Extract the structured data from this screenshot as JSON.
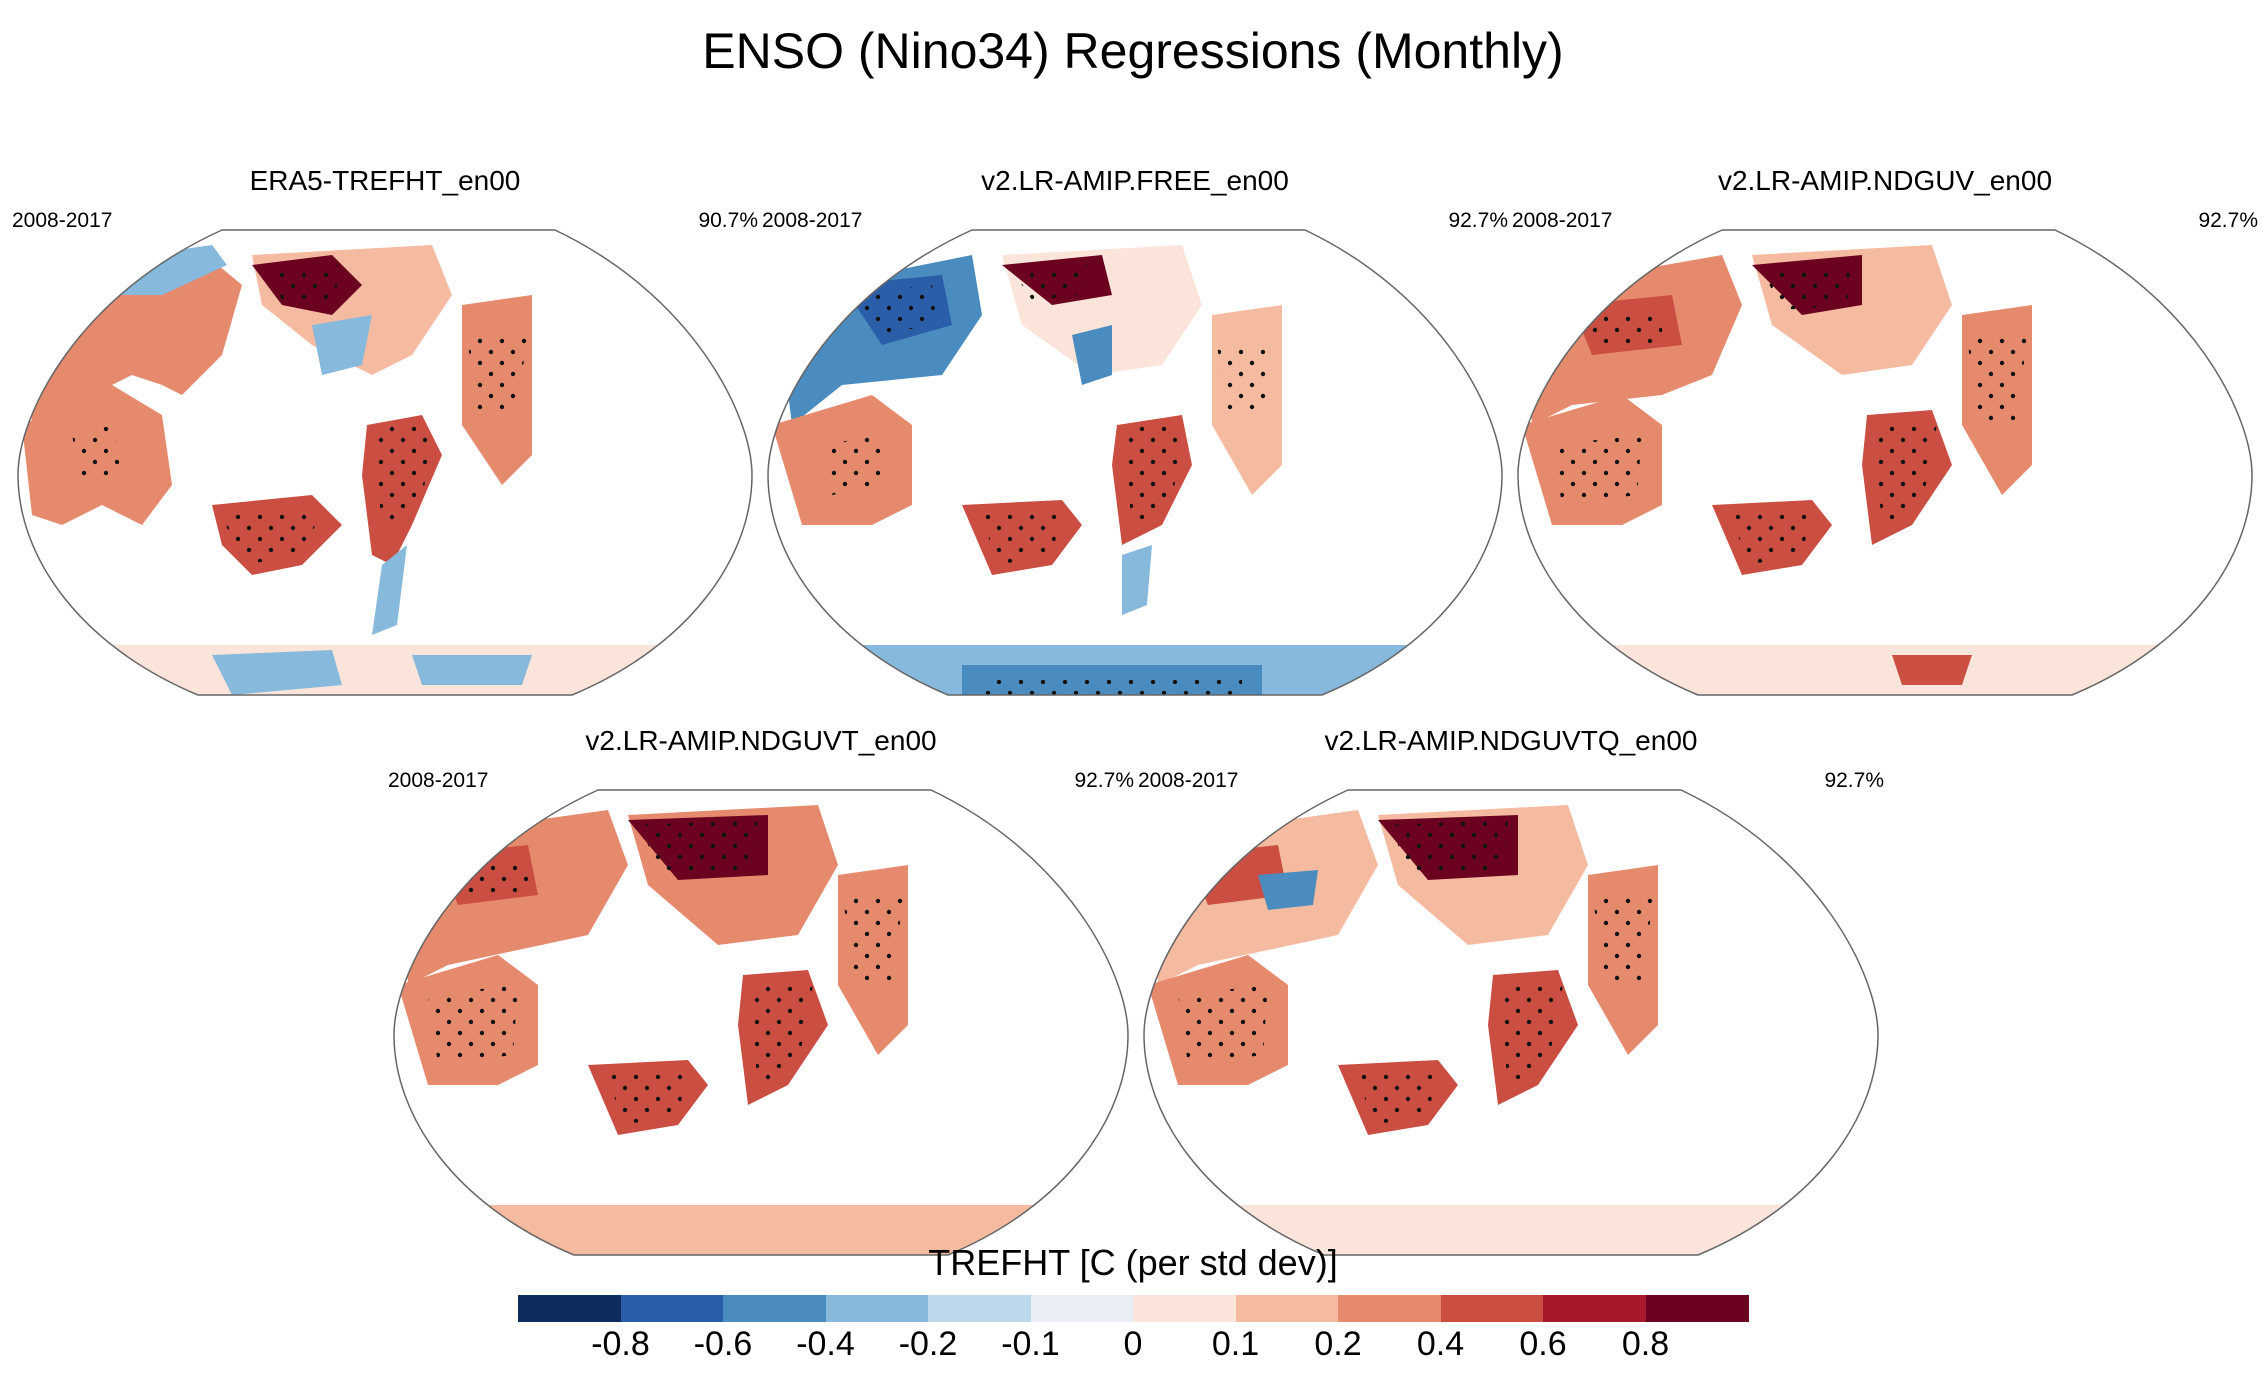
{
  "title": "ENSO (Nino34) Regressions (Monthly)",
  "panels": [
    {
      "title": "ERA5-TREFHT_en00",
      "period": "2008-2017",
      "percent": "90.7%"
    },
    {
      "title": "v2.LR-AMIP.FREE_en00",
      "period": "2008-2017",
      "percent": "92.7%"
    },
    {
      "title": "v2.LR-AMIP.NDGUV_en00",
      "period": "2008-2017",
      "percent": "92.7%"
    },
    {
      "title": "v2.LR-AMIP.NDGUVT_en00",
      "period": "2008-2017",
      "percent": "92.7%"
    },
    {
      "title": "v2.LR-AMIP.NDGUVTQ_en00",
      "period": "2008-2017",
      "percent": "92.7%"
    }
  ],
  "colorbar": {
    "title": "TREFHT [C (per std dev)]",
    "labels": [
      "-0.8",
      "-0.6",
      "-0.4",
      "-0.2",
      "-0.1",
      "0",
      "0.1",
      "0.2",
      "0.4",
      "0.6",
      "0.8"
    ],
    "colors": [
      "#0d2d5c",
      "#2a5ea8",
      "#4a8cc0",
      "#86b9db",
      "#bcd8ea",
      "#e8eef4",
      "#fbe5da",
      "#f5bba0",
      "#e68a6d",
      "#cb4e42",
      "#a8172b",
      "#6a0220"
    ]
  }
}
